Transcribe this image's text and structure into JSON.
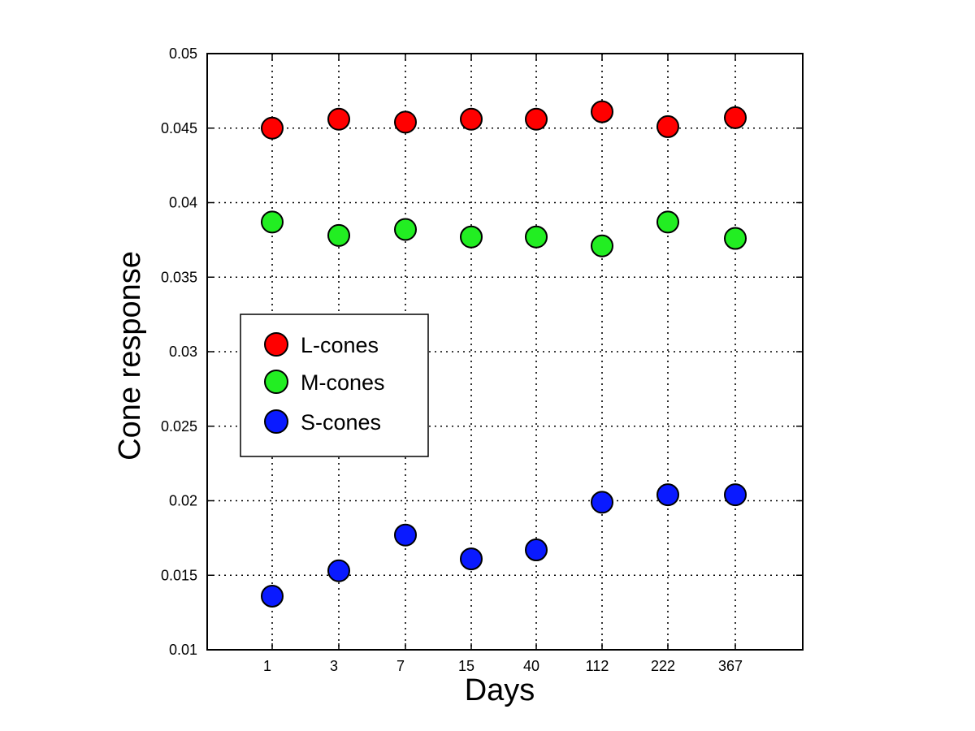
{
  "chart_data": {
    "type": "scatter",
    "xlabel": "Days",
    "ylabel": "Cone response",
    "categories": [
      "1",
      "3",
      "7",
      "15",
      "40",
      "112",
      "222",
      "367"
    ],
    "ylim": [
      0.01,
      0.05
    ],
    "yticks": [
      "0.01",
      "0.015",
      "0.02",
      "0.025",
      "0.03",
      "0.035",
      "0.04",
      "0.045",
      "0.05"
    ],
    "grid": true,
    "legend_position": "center-left",
    "series": [
      {
        "name": "L-cones",
        "color": "#ff0000",
        "values": [
          0.045,
          0.0456,
          0.0454,
          0.0456,
          0.0456,
          0.0461,
          0.0451,
          0.0457
        ]
      },
      {
        "name": "M-cones",
        "color": "#22ee22",
        "values": [
          0.0387,
          0.0378,
          0.0382,
          0.0377,
          0.0377,
          0.0371,
          0.0387,
          0.0376
        ]
      },
      {
        "name": "S-cones",
        "color": "#0a1aff",
        "values": [
          0.0136,
          0.0153,
          0.0177,
          0.0161,
          0.0167,
          0.0199,
          0.0204,
          0.0204
        ]
      }
    ]
  }
}
